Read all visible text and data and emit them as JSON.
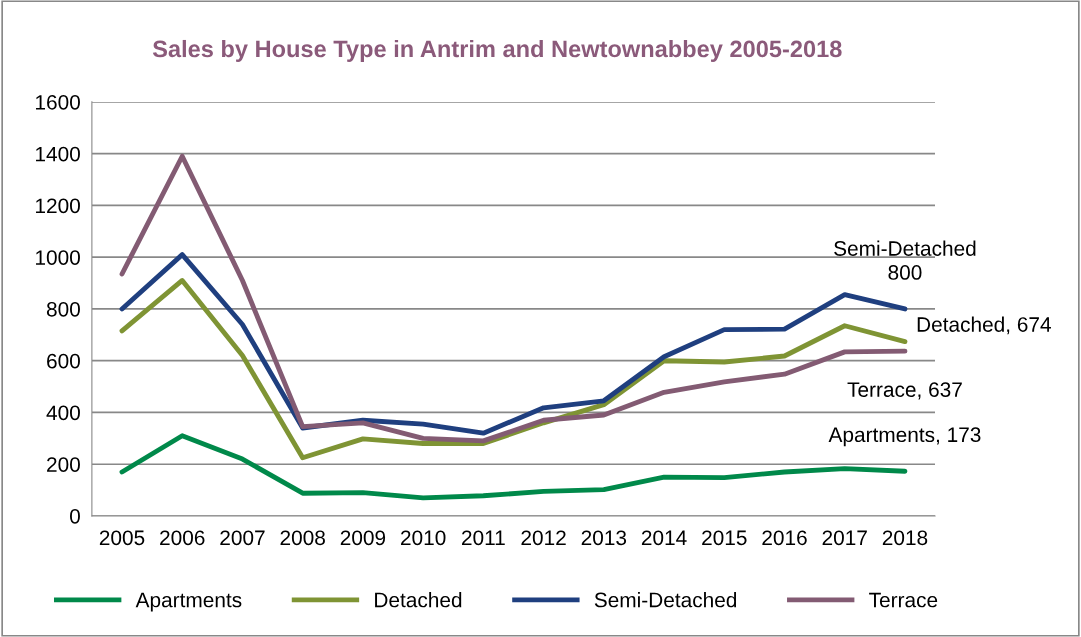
{
  "chart_data": {
    "type": "line",
    "title": "Sales by House Type in Antrim and Newtownabbey 2005-2018",
    "categories": [
      "2005",
      "2006",
      "2007",
      "2008",
      "2009",
      "2010",
      "2011",
      "2012",
      "2013",
      "2014",
      "2015",
      "2016",
      "2017",
      "2018"
    ],
    "series": [
      {
        "name": "Apartments",
        "color": "#00894a",
        "values": [
          170,
          310,
          220,
          88,
          90,
          70,
          78,
          95,
          102,
          150,
          148,
          170,
          183,
          173
        ]
      },
      {
        "name": "Detached",
        "color": "#7f9434",
        "values": [
          715,
          910,
          620,
          225,
          298,
          280,
          280,
          360,
          430,
          600,
          595,
          618,
          735,
          674
        ]
      },
      {
        "name": "Semi-Detached",
        "color": "#1f3f7f",
        "values": [
          800,
          1010,
          740,
          340,
          370,
          355,
          320,
          418,
          445,
          615,
          720,
          722,
          855,
          800
        ]
      },
      {
        "name": "Terrace",
        "color": "#835b73",
        "values": [
          935,
          1390,
          910,
          345,
          360,
          300,
          290,
          370,
          390,
          478,
          518,
          548,
          634,
          637
        ]
      }
    ],
    "annotations": [
      {
        "text": "Semi-Detached\n800",
        "x": "2018",
        "y": 800
      },
      {
        "text": "Detached, 674",
        "x": "2018",
        "y": 674
      },
      {
        "text": "Terrace, 637",
        "x": "2018",
        "y": 637
      },
      {
        "text": "Apartments, 173",
        "x": "2018",
        "y": 173
      }
    ],
    "ylim": [
      0,
      1600
    ],
    "yticks": [
      0,
      200,
      400,
      600,
      800,
      1000,
      1200,
      1400,
      1600
    ],
    "grid": "y",
    "legend": "bottom",
    "marker": "none",
    "line_style": "solid"
  }
}
